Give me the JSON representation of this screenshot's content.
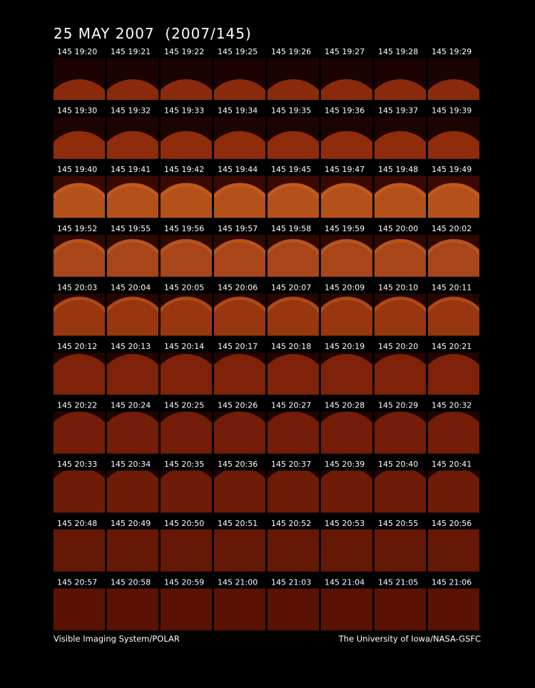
{
  "title": "25 MAY 2007  (2007/145)",
  "rows": [
    [
      "145 19:20",
      "145 19:21",
      "145 19:22",
      "145 19:25",
      "145 19:26",
      "145 19:27",
      "145 19:28",
      "145 19:29"
    ],
    [
      "145 19:30",
      "145 19:32",
      "145 19:33",
      "145 19:34",
      "145 19:35",
      "145 19:36",
      "145 19:37",
      "145 19:39"
    ],
    [
      "145 19:40",
      "145 19:41",
      "145 19:42",
      "145 19:44",
      "145 19:45",
      "145 19:47",
      "145 19:48",
      "145 19:49"
    ],
    [
      "145 19:52",
      "145 19:55",
      "145 19:56",
      "145 19:57",
      "145 19:58",
      "145 19:59",
      "145 20:00",
      "145 20:02"
    ],
    [
      "145 20:03",
      "145 20:04",
      "145 20:05",
      "145 20:06",
      "145 20:07",
      "145 20:09",
      "145 20:10",
      "145 20:11"
    ],
    [
      "145 20:12",
      "145 20:13",
      "145 20:14",
      "145 20:17",
      "145 20:18",
      "145 20:19",
      "145 20:20",
      "145 20:21"
    ],
    [
      "145 20:22",
      "145 20:24",
      "145 20:25",
      "145 20:26",
      "145 20:27",
      "145 20:28",
      "145 20:29",
      "145 20:32"
    ],
    [
      "145 20:33",
      "145 20:34",
      "145 20:35",
      "145 20:36",
      "145 20:37",
      "145 20:39",
      "145 20:40",
      "145 20:41"
    ],
    [
      "145 20:48",
      "145 20:49",
      "145 20:50",
      "145 20:51",
      "145 20:52",
      "145 20:53",
      "145 20:55",
      "145 20:56"
    ],
    [
      "145 20:57",
      "145 20:58",
      "145 20:59",
      "145 21:00",
      "145 21:03",
      "145 21:04",
      "145 21:05",
      "145 21:06"
    ]
  ],
  "footer": {
    "left": "Visible Imaging System/POLAR",
    "right": "The University of Iowa/NASA-GSFC"
  }
}
